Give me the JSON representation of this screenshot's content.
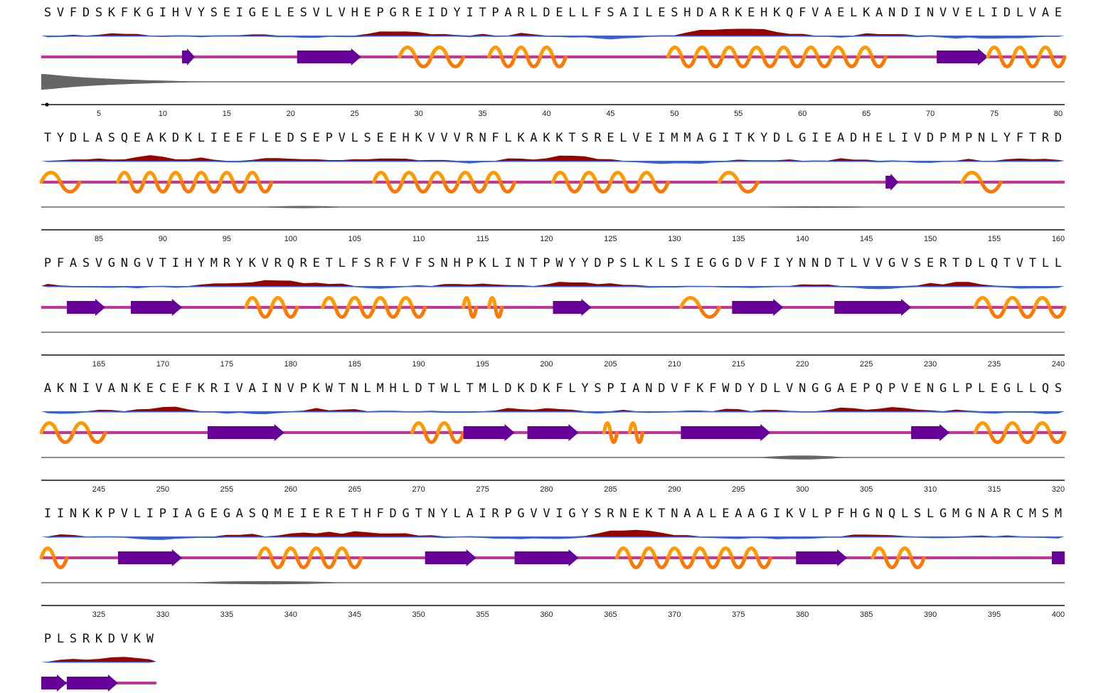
{
  "sequence": "SVFDSKFKGIHVYSEIGELESVLVHEPGREIDYITPARLDELLFSAILESHDARKEHKQFVAELKANDINVVELIDLVAETYDLASQEAKDKLIEEFLEDSEPVLSEEHKVVVRNFLKAKKTSRELVEIMMAGITKYDLGIEADHELIVDPMPNLYFTRDPFASVGNGVTIHYMRYKVRQRETLFSRFVFSNHPKLINTPWYYDPSLKLSIEGGDVFIYNNDTLVVGVSERTDLQTVTLLAKNIVANKECEFKRIVAINVPKWTNLMHLDTWLTMLDKDKFLYSPIANDVFKFWDYDLVNGGAEPQPVENGLPLEGLLQSIINKKPVLIPIAGEGASQMEIERETHFDGTNYLAIRPGVVIGYSRNEKTNAALEAAGIKVLPFHGNQLSLGMGNARCMSMPLSRKDVKW",
  "residues_per_row": 80,
  "first_residue_number": 1,
  "tick_every": 5,
  "tick_labels": [
    "5",
    "10",
    "15",
    "20",
    "25",
    "30",
    "35",
    "40",
    "45",
    "50",
    "55",
    "60",
    "65",
    "70",
    "75",
    "80",
    "85",
    "90",
    "95",
    "100",
    "105",
    "110",
    "115",
    "120",
    "125",
    "130",
    "135",
    "140",
    "145",
    "150",
    "155",
    "160",
    "165",
    "170",
    "175",
    "180",
    "185",
    "190",
    "195",
    "200",
    "205",
    "210",
    "215",
    "220",
    "225",
    "230",
    "235",
    "240",
    "245",
    "250",
    "255",
    "260",
    "265",
    "270",
    "275",
    "280",
    "285",
    "290",
    "295",
    "300",
    "305",
    "310",
    "315",
    "320",
    "325",
    "330",
    "335",
    "340",
    "345",
    "350",
    "355",
    "360",
    "365",
    "370",
    "375",
    "380",
    "385",
    "390",
    "395",
    "400"
  ],
  "colors": {
    "hydrophobic": "#3a62c8",
    "hydrophilic": "#990000",
    "coil": "#cc3399",
    "strand": "#660099",
    "helix_dark": "#ff7700",
    "helix_light": "#ff9900",
    "disorder": "#666666",
    "axis": "#111111"
  },
  "secondary_structure": [
    {
      "type": "strand",
      "start": 12,
      "end": 12
    },
    {
      "type": "strand",
      "start": 21,
      "end": 25
    },
    {
      "type": "helix",
      "start": 29,
      "end": 33
    },
    {
      "type": "helix",
      "start": 36,
      "end": 41
    },
    {
      "type": "helix",
      "start": 50,
      "end": 66
    },
    {
      "type": "strand",
      "start": 71,
      "end": 74
    },
    {
      "type": "helix",
      "start": 75,
      "end": 83
    },
    {
      "type": "helix",
      "start": 87,
      "end": 98
    },
    {
      "type": "helix",
      "start": 107,
      "end": 117
    },
    {
      "type": "helix",
      "start": 121,
      "end": 129
    },
    {
      "type": "helix",
      "start": 134,
      "end": 136
    },
    {
      "type": "strand",
      "start": 147,
      "end": 147
    },
    {
      "type": "helix",
      "start": 153,
      "end": 155
    },
    {
      "type": "strand",
      "start": 163,
      "end": 165
    },
    {
      "type": "strand",
      "start": 168,
      "end": 171
    },
    {
      "type": "helix",
      "start": 177,
      "end": 180
    },
    {
      "type": "helix",
      "start": 183,
      "end": 190
    },
    {
      "type": "helix",
      "start": 194,
      "end": 194
    },
    {
      "type": "helix",
      "start": 196,
      "end": 196
    },
    {
      "type": "strand",
      "start": 201,
      "end": 203
    },
    {
      "type": "helix",
      "start": 211,
      "end": 213
    },
    {
      "type": "strand",
      "start": 215,
      "end": 218
    },
    {
      "type": "strand",
      "start": 223,
      "end": 228
    },
    {
      "type": "helix",
      "start": 234,
      "end": 245
    },
    {
      "type": "strand",
      "start": 254,
      "end": 259
    },
    {
      "type": "helix",
      "start": 270,
      "end": 273
    },
    {
      "type": "strand",
      "start": 274,
      "end": 277
    },
    {
      "type": "strand",
      "start": 279,
      "end": 282
    },
    {
      "type": "helix",
      "start": 285,
      "end": 285
    },
    {
      "type": "helix",
      "start": 287,
      "end": 287
    },
    {
      "type": "strand",
      "start": 291,
      "end": 297
    },
    {
      "type": "strand",
      "start": 309,
      "end": 311
    },
    {
      "type": "helix",
      "start": 314,
      "end": 322
    },
    {
      "type": "strand",
      "start": 327,
      "end": 331
    },
    {
      "type": "helix",
      "start": 338,
      "end": 345
    },
    {
      "type": "strand",
      "start": 351,
      "end": 354
    },
    {
      "type": "strand",
      "start": 358,
      "end": 362
    },
    {
      "type": "helix",
      "start": 366,
      "end": 377
    },
    {
      "type": "strand",
      "start": 380,
      "end": 383
    },
    {
      "type": "helix",
      "start": 386,
      "end": 389
    },
    {
      "type": "strand",
      "start": 400,
      "end": 402
    },
    {
      "type": "strand",
      "start": 403,
      "end": 406
    }
  ],
  "disorder_regions": [
    {
      "start": 1,
      "end": 12,
      "peak": 1.0
    },
    {
      "start": 98,
      "end": 104,
      "peak": 0.15
    },
    {
      "start": 136,
      "end": 146,
      "peak": 0.1
    },
    {
      "start": 297,
      "end": 303,
      "peak": 0.25
    },
    {
      "start": 332,
      "end": 344,
      "peak": 0.2
    }
  ]
}
